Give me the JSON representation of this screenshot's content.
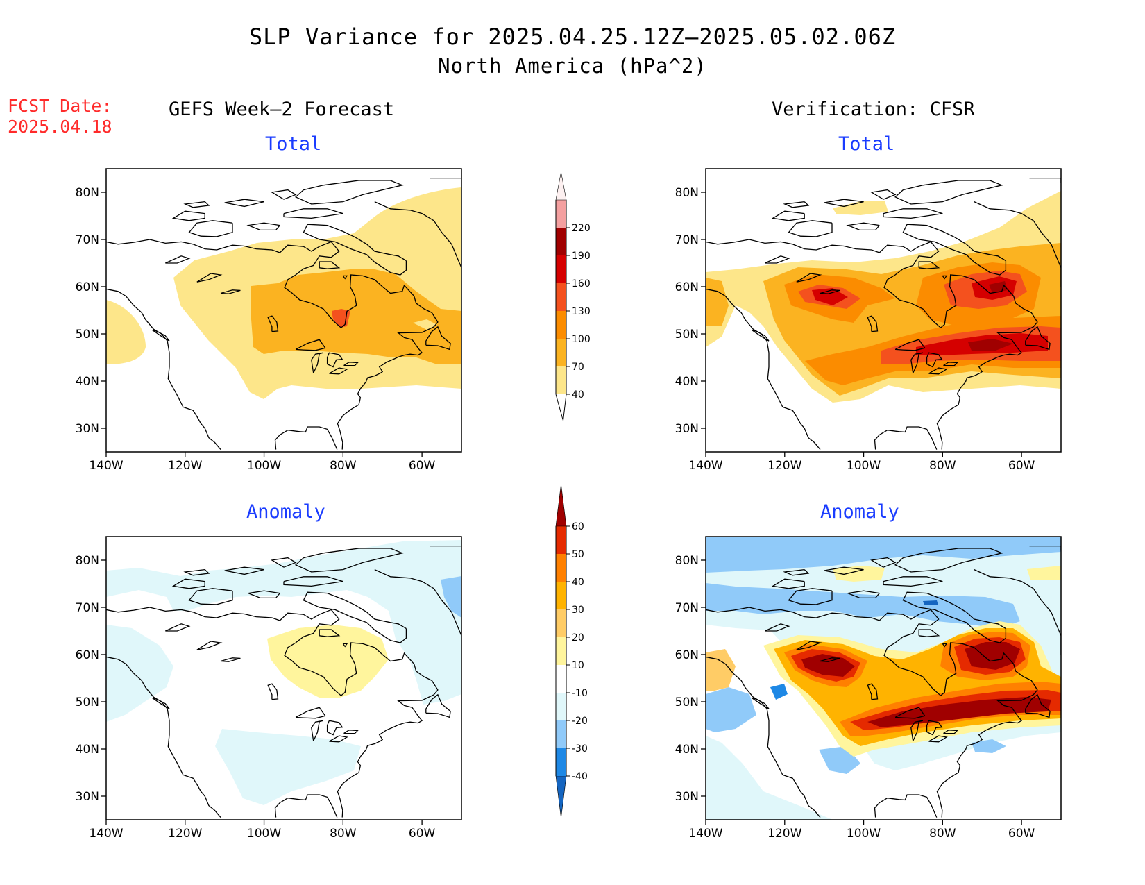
{
  "title": "SLP Variance for 2025.04.25.12Z–2025.05.02.06Z",
  "subtitle": "North America (hPa^2)",
  "fcst_date_label": "FCST Date:",
  "fcst_date": "2025.04.18",
  "columns": {
    "left": "GEFS Week–2 Forecast",
    "right": "Verification: CFSR"
  },
  "panels": {
    "total_label": "Total",
    "anomaly_label": "Anomaly"
  },
  "axes": {
    "lat_ticks": [
      "80N",
      "70N",
      "60N",
      "50N",
      "40N",
      "30N"
    ],
    "lat_values": [
      80,
      70,
      60,
      50,
      40,
      30
    ],
    "lon_ticks": [
      "140W",
      "120W",
      "100W",
      "80W",
      "60W"
    ],
    "lon_values": [
      -140,
      -120,
      -100,
      -80,
      -60
    ],
    "lat_range": [
      25,
      85
    ],
    "lon_range": [
      -140,
      -50
    ]
  },
  "legend_total": {
    "labels": [
      "40",
      "70",
      "100",
      "130",
      "160",
      "190",
      "220"
    ],
    "colors": [
      "#fde68a",
      "#fbb321",
      "#fb8c00",
      "#f4511e",
      "#d50000",
      "#a00000",
      "#f4a0a0",
      "#fdf0f0"
    ]
  },
  "legend_anomaly": {
    "labels": [
      "-40",
      "-30",
      "-20",
      "-10",
      "10",
      "20",
      "30",
      "40",
      "50",
      "60"
    ],
    "colors": [
      "#1565c0",
      "#1e88e5",
      "#90caf9",
      "#e0f7fa",
      "#ffffff",
      "#fff59d",
      "#ffcc66",
      "#ffb300",
      "#ff8000",
      "#e52a00",
      "#a00000"
    ]
  },
  "colors": {
    "title_blue": "#1a3cff",
    "fcst_red": "#ff2a2a"
  },
  "chart_data": {
    "type": "heatmap",
    "title": "SLP Variance for 2025.04.25.12Z–2025.05.02.06Z",
    "subtitle": "North America (hPa^2)",
    "panels": [
      {
        "name": "GEFS Week–2 Forecast Total",
        "max_value_approx": 130,
        "max_location": [
          -82,
          52
        ]
      },
      {
        "name": "Verification: CFSR Total",
        "max_value_approx": 190,
        "max_location": [
          -70,
          48
        ]
      },
      {
        "name": "GEFS Week–2 Forecast Anomaly",
        "range_approx": [
          -20,
          20
        ]
      },
      {
        "name": "Verification: CFSR Anomaly",
        "range_approx": [
          -30,
          60
        ]
      }
    ]
  }
}
